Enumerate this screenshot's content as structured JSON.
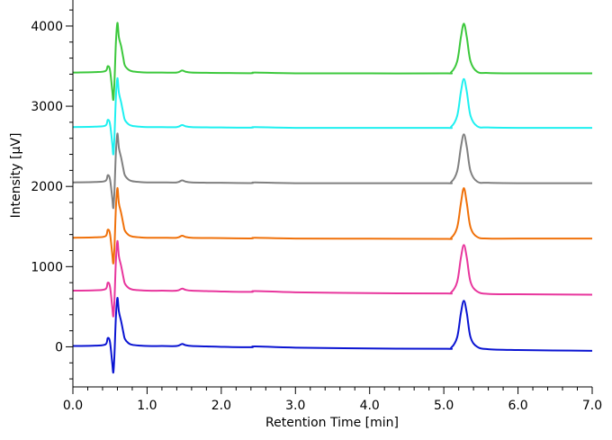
{
  "chart_data": {
    "type": "line",
    "title": "",
    "xlabel": "Retention Time [min]",
    "ylabel": "Intensity [µV]",
    "xlim": [
      0.0,
      7.0
    ],
    "ylim": [
      -500,
      4500
    ],
    "x_ticks": [
      {
        "value": 0,
        "label": "0.0"
      },
      {
        "value": 1,
        "label": "1.0"
      },
      {
        "value": 2,
        "label": "2.0"
      },
      {
        "value": 3,
        "label": "3.0"
      },
      {
        "value": 4,
        "label": "4.0"
      },
      {
        "value": 5,
        "label": "5.0"
      },
      {
        "value": 6,
        "label": "6.0"
      },
      {
        "value": 7,
        "label": "7.0"
      }
    ],
    "y_ticks": [
      {
        "value": 0,
        "label": "0"
      },
      {
        "value": 1000,
        "label": "1000"
      },
      {
        "value": 2000,
        "label": "2000"
      },
      {
        "value": 3000,
        "label": "3000"
      },
      {
        "value": 4000,
        "label": "4000"
      }
    ],
    "grid": false,
    "legend": "none",
    "series": [
      {
        "color": "#0a14d2",
        "x": [
          0.0,
          0.3,
          0.44,
          0.47,
          0.5,
          0.53,
          0.545,
          0.56,
          0.58,
          0.6,
          0.62,
          0.65,
          0.68,
          0.7,
          0.75,
          0.8,
          0.9,
          1.0,
          1.2,
          1.4,
          1.47,
          1.52,
          1.6,
          1.8,
          2.0,
          2.4,
          2.46,
          3.0,
          4.0,
          5.0,
          5.1,
          5.18,
          5.23,
          5.27,
          5.31,
          5.36,
          5.45,
          5.6,
          6.0,
          7.0
        ],
        "y": [
          10,
          15,
          30,
          110,
          60,
          -200,
          -320,
          -100,
          380,
          610,
          440,
          320,
          180,
          100,
          45,
          25,
          15,
          10,
          10,
          10,
          35,
          20,
          10,
          5,
          0,
          -5,
          5,
          -10,
          -20,
          -25,
          -10,
          120,
          420,
          575,
          420,
          120,
          0,
          -30,
          -40,
          -50
        ]
      },
      {
        "color": "#e8369d",
        "x": [
          0.0,
          0.3,
          0.44,
          0.47,
          0.5,
          0.53,
          0.545,
          0.56,
          0.58,
          0.6,
          0.62,
          0.65,
          0.68,
          0.7,
          0.75,
          0.8,
          0.9,
          1.0,
          1.2,
          1.4,
          1.47,
          1.52,
          1.6,
          1.8,
          2.0,
          2.4,
          2.46,
          3.0,
          4.0,
          5.0,
          5.1,
          5.18,
          5.23,
          5.27,
          5.31,
          5.36,
          5.45,
          5.6,
          6.0,
          7.0
        ],
        "y": [
          700,
          705,
          720,
          800,
          750,
          500,
          380,
          580,
          1080,
          1320,
          1130,
          1010,
          870,
          790,
          735,
          715,
          705,
          700,
          700,
          700,
          725,
          710,
          700,
          695,
          690,
          685,
          695,
          680,
          670,
          665,
          680,
          810,
          1110,
          1270,
          1110,
          810,
          690,
          660,
          655,
          650
        ]
      },
      {
        "color": "#f0710a",
        "x": [
          0.0,
          0.3,
          0.44,
          0.47,
          0.5,
          0.53,
          0.545,
          0.56,
          0.58,
          0.6,
          0.62,
          0.65,
          0.68,
          0.7,
          0.75,
          0.8,
          0.9,
          1.0,
          1.2,
          1.4,
          1.47,
          1.52,
          1.6,
          1.8,
          2.0,
          2.4,
          2.46,
          3.0,
          4.0,
          5.0,
          5.1,
          5.18,
          5.23,
          5.27,
          5.31,
          5.36,
          5.45,
          5.6,
          6.0,
          7.0
        ],
        "y": [
          1360,
          1365,
          1380,
          1460,
          1410,
          1160,
          1040,
          1240,
          1740,
          1980,
          1790,
          1670,
          1530,
          1450,
          1395,
          1375,
          1365,
          1360,
          1360,
          1360,
          1385,
          1370,
          1360,
          1357,
          1355,
          1352,
          1360,
          1350,
          1348,
          1346,
          1360,
          1490,
          1790,
          1980,
          1790,
          1490,
          1370,
          1350,
          1350,
          1350
        ]
      },
      {
        "color": "#808080",
        "x": [
          0.0,
          0.3,
          0.44,
          0.47,
          0.5,
          0.53,
          0.545,
          0.56,
          0.58,
          0.6,
          0.62,
          0.65,
          0.68,
          0.7,
          0.75,
          0.8,
          0.9,
          1.0,
          1.2,
          1.4,
          1.47,
          1.52,
          1.6,
          1.8,
          2.0,
          2.4,
          2.46,
          3.0,
          4.0,
          5.0,
          5.1,
          5.18,
          5.23,
          5.27,
          5.31,
          5.36,
          5.45,
          5.6,
          6.0,
          7.0
        ],
        "y": [
          2050,
          2055,
          2070,
          2140,
          2090,
          1860,
          1730,
          1940,
          2430,
          2660,
          2480,
          2360,
          2220,
          2140,
          2085,
          2065,
          2055,
          2050,
          2050,
          2050,
          2075,
          2060,
          2050,
          2046,
          2045,
          2042,
          2050,
          2040,
          2040,
          2040,
          2055,
          2190,
          2490,
          2650,
          2490,
          2190,
          2060,
          2045,
          2040,
          2040
        ]
      },
      {
        "color": "#1ef0f0",
        "x": [
          0.0,
          0.3,
          0.44,
          0.47,
          0.5,
          0.53,
          0.545,
          0.56,
          0.58,
          0.6,
          0.62,
          0.65,
          0.68,
          0.7,
          0.75,
          0.8,
          0.9,
          1.0,
          1.2,
          1.4,
          1.47,
          1.52,
          1.6,
          1.8,
          2.0,
          2.4,
          2.46,
          3.0,
          4.0,
          5.0,
          5.1,
          5.18,
          5.23,
          5.27,
          5.31,
          5.36,
          5.45,
          5.6,
          6.0,
          7.0
        ],
        "y": [
          2740,
          2745,
          2760,
          2830,
          2780,
          2540,
          2400,
          2620,
          3120,
          3350,
          3170,
          3050,
          2910,
          2830,
          2775,
          2755,
          2745,
          2740,
          2740,
          2740,
          2765,
          2750,
          2740,
          2737,
          2735,
          2733,
          2740,
          2730,
          2730,
          2730,
          2745,
          2880,
          3180,
          3340,
          3180,
          2880,
          2750,
          2735,
          2730,
          2730
        ]
      },
      {
        "color": "#3cc83c",
        "x": [
          0.0,
          0.3,
          0.44,
          0.47,
          0.5,
          0.53,
          0.545,
          0.56,
          0.58,
          0.6,
          0.62,
          0.65,
          0.68,
          0.7,
          0.75,
          0.8,
          0.9,
          1.0,
          1.2,
          1.4,
          1.47,
          1.52,
          1.6,
          1.8,
          2.0,
          2.4,
          2.46,
          3.0,
          4.0,
          5.0,
          5.1,
          5.18,
          5.23,
          5.27,
          5.31,
          5.36,
          5.45,
          5.6,
          6.0,
          7.0
        ],
        "y": [
          3420,
          3425,
          3440,
          3500,
          3450,
          3200,
          3080,
          3300,
          3800,
          4040,
          3860,
          3750,
          3600,
          3510,
          3455,
          3435,
          3425,
          3420,
          3420,
          3420,
          3445,
          3430,
          3420,
          3417,
          3415,
          3412,
          3420,
          3410,
          3410,
          3410,
          3425,
          3560,
          3860,
          4030,
          3860,
          3560,
          3430,
          3415,
          3410,
          3410
        ]
      }
    ]
  }
}
